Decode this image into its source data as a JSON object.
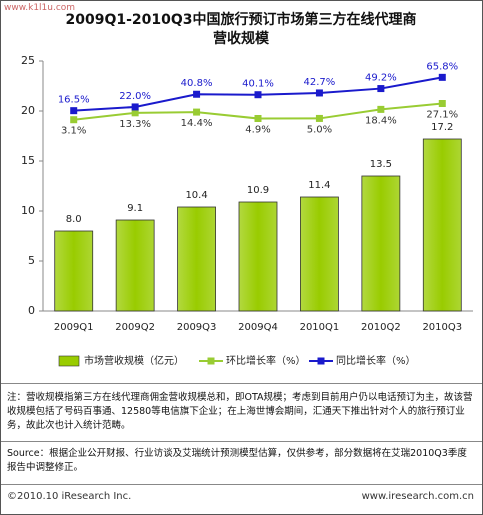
{
  "chart_data": {
    "type": "bar-line",
    "watermark": "www.k1l1u.com",
    "title": "2009Q1-2010Q3中国旅行预订市场第三方在线代理商营收规模",
    "categories": [
      "2009Q1",
      "2009Q2",
      "2009Q3",
      "2009Q4",
      "2010Q1",
      "2010Q2",
      "2010Q3"
    ],
    "series": [
      {
        "name": "市场营收规模（亿元）",
        "type": "bar",
        "color": "#99cc00",
        "values": [
          8.0,
          9.1,
          10.4,
          10.9,
          11.4,
          13.5,
          17.2
        ],
        "value_labels": [
          "8.0",
          "9.1",
          "10.4",
          "10.9",
          "11.4",
          "13.5",
          "17.2"
        ]
      },
      {
        "name": "环比增长率（%）",
        "type": "line",
        "axis": "y2",
        "color": "#99cc33",
        "values": [
          3.1,
          13.3,
          14.4,
          4.9,
          5.0,
          18.4,
          27.1
        ],
        "value_labels": [
          "3.1%",
          "13.3%",
          "14.4%",
          "4.9%",
          "5.0%",
          "18.4%",
          "27.1%"
        ]
      },
      {
        "name": "同比增长率（%）",
        "type": "line",
        "axis": "y2",
        "color": "#1a1acc",
        "values": [
          16.5,
          22.0,
          40.8,
          40.1,
          42.7,
          49.2,
          65.8
        ],
        "value_labels": [
          "16.5%",
          "22.0%",
          "40.8%",
          "40.1%",
          "42.7%",
          "49.2%",
          "65.8%"
        ]
      }
    ],
    "ylim": [
      0,
      25
    ],
    "yticks": [
      0,
      5,
      10,
      15,
      20,
      25
    ],
    "y2lim": [
      -280,
      90
    ],
    "grid": false,
    "note": "注：营收规模指第三方在线代理商佣金营收规模总和，即OTA规模；考虑到目前用户仍以电话预订为主，故该营收规模包括了号码百事通、12580等电信旗下企业；在上海世博会期间，汇通天下推出针对个人的旅行预订业务，故此次也计入统计范畴。",
    "source": "Source：根据企业公开财报、行业访谈及艾瑞统计预测模型估算，仅供参考，部分数据将在艾瑞2010Q3季度报告中调整修正。",
    "copyright": "©2010.10 iResearch Inc.",
    "website": "www.iresearch.com.cn"
  }
}
